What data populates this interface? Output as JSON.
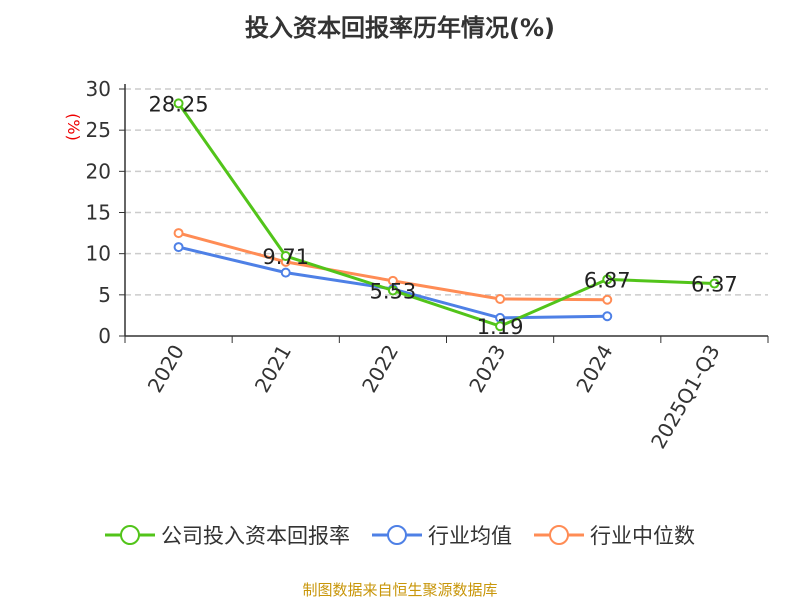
{
  "chart_data": {
    "type": "line",
    "title": "投入资本回报率历年情况(%)",
    "ylabel": "(%)",
    "xlabel": "",
    "categories": [
      "2020",
      "2021",
      "2022",
      "2023",
      "2024",
      "2025Q1-Q3"
    ],
    "ylim": [
      0,
      30
    ],
    "yticks": [
      0,
      5,
      10,
      15,
      20,
      25,
      30
    ],
    "grid": "horizontal-dashed",
    "legend_position": "bottom",
    "series": [
      {
        "name": "公司投入资本回报率",
        "color": "#52c41a",
        "values": [
          28.25,
          9.71,
          5.53,
          1.19,
          6.87,
          6.37
        ],
        "labels": [
          "28.25",
          "9.71",
          "5.53",
          "1.19",
          "6.87",
          "6.37"
        ]
      },
      {
        "name": "行业均值",
        "color": "#4e80e6",
        "values": [
          10.8,
          7.7,
          5.7,
          2.2,
          2.4,
          null
        ]
      },
      {
        "name": "行业中位数",
        "color": "#ff8c55",
        "values": [
          12.5,
          9.0,
          6.7,
          4.5,
          4.4,
          null
        ]
      }
    ]
  },
  "source": "制图数据来自恒生聚源数据库"
}
